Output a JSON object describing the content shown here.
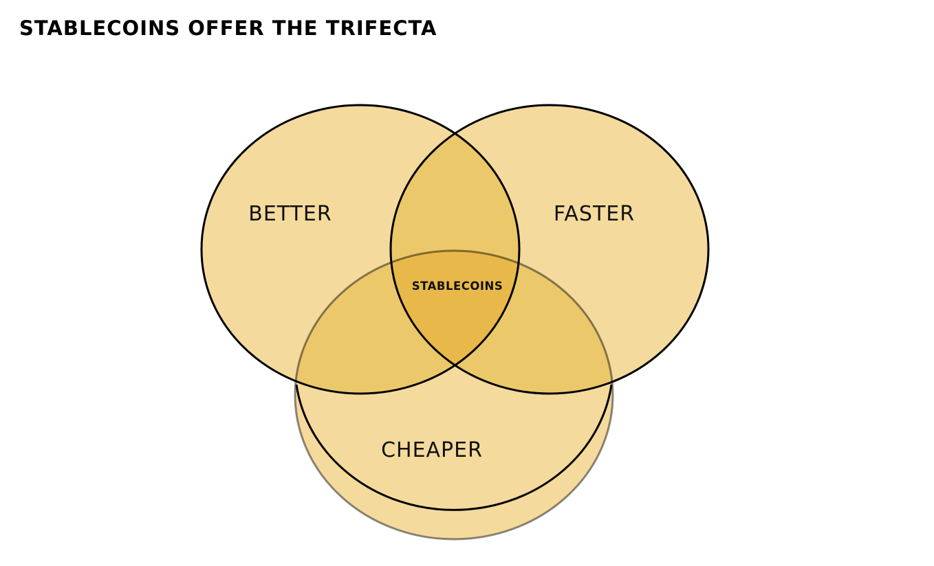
{
  "title": "STABLECOINS OFFER THE TRIFECTA",
  "sets": [
    {
      "id": "better",
      "label": "BETTER"
    },
    {
      "id": "faster",
      "label": "FASTER"
    },
    {
      "id": "cheaper",
      "label": "CHEAPER"
    }
  ],
  "intersection": {
    "label": "STABLECOINS"
  },
  "colors": {
    "circle_fill": "#f4da9c",
    "pair_overlap_fill": "#ebc86a",
    "center_overlap_fill": "#e8b94a",
    "outline": "#000000"
  }
}
